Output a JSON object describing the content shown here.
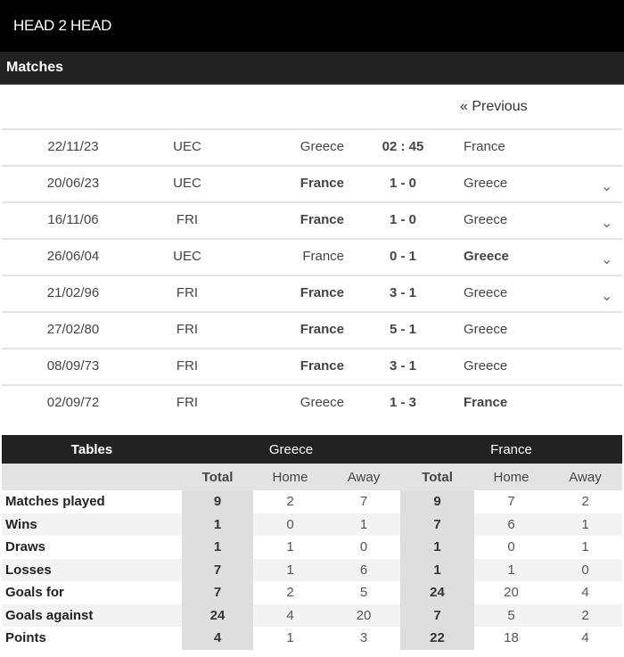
{
  "header": {
    "title": "HEAD 2 HEAD"
  },
  "matches_section": {
    "title": "Matches",
    "previous_label": "« Previous"
  },
  "matches": [
    {
      "date": "22/11/23",
      "comp": "UEC",
      "home": "Greece",
      "score": "02 : 45",
      "away": "France",
      "winner": "",
      "expandable": false
    },
    {
      "date": "20/06/23",
      "comp": "UEC",
      "home": "France",
      "score": "1 - 0",
      "away": "Greece",
      "winner": "home",
      "expandable": true
    },
    {
      "date": "16/11/06",
      "comp": "FRI",
      "home": "France",
      "score": "1 - 0",
      "away": "Greece",
      "winner": "home",
      "expandable": true
    },
    {
      "date": "26/06/04",
      "comp": "UEC",
      "home": "France",
      "score": "0 - 1",
      "away": "Greece",
      "winner": "away",
      "expandable": true
    },
    {
      "date": "21/02/96",
      "comp": "FRI",
      "home": "France",
      "score": "3 - 1",
      "away": "Greece",
      "winner": "home",
      "expandable": true
    },
    {
      "date": "27/02/80",
      "comp": "FRI",
      "home": "France",
      "score": "5 - 1",
      "away": "Greece",
      "winner": "home",
      "expandable": false
    },
    {
      "date": "08/09/73",
      "comp": "FRI",
      "home": "France",
      "score": "3 - 1",
      "away": "Greece",
      "winner": "home",
      "expandable": false
    },
    {
      "date": "02/09/72",
      "comp": "FRI",
      "home": "Greece",
      "score": "1 - 3",
      "away": "France",
      "winner": "away",
      "expandable": false
    }
  ],
  "tables": {
    "title": "Tables",
    "teams": [
      "Greece",
      "France"
    ],
    "columns": [
      "Total",
      "Home",
      "Away",
      "Total",
      "Home",
      "Away"
    ],
    "rows": [
      {
        "label": "Matches played",
        "values": [
          "9",
          "2",
          "7",
          "9",
          "7",
          "2"
        ]
      },
      {
        "label": "Wins",
        "values": [
          "1",
          "0",
          "1",
          "7",
          "6",
          "1"
        ]
      },
      {
        "label": "Draws",
        "values": [
          "1",
          "1",
          "0",
          "1",
          "0",
          "1"
        ]
      },
      {
        "label": "Losses",
        "values": [
          "7",
          "1",
          "6",
          "1",
          "1",
          "0"
        ]
      },
      {
        "label": "Goals for",
        "values": [
          "7",
          "2",
          "5",
          "24",
          "20",
          "4"
        ]
      },
      {
        "label": "Goals against",
        "values": [
          "24",
          "4",
          "20",
          "7",
          "5",
          "2"
        ]
      },
      {
        "label": "Points",
        "values": [
          "4",
          "1",
          "3",
          "22",
          "18",
          "4"
        ]
      }
    ]
  }
}
